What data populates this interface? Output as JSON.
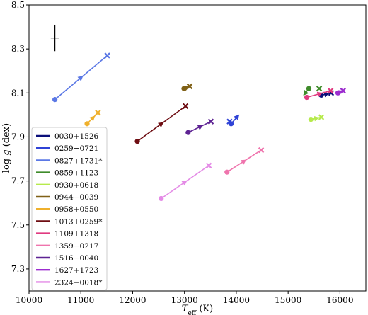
{
  "chart_data": {
    "type": "scatter",
    "xlabel": "T_eff (K)",
    "ylabel": "log g (dex)",
    "xlim": [
      10000,
      16500
    ],
    "ylim": [
      7.2,
      8.5
    ],
    "x_ticks": [
      10000,
      11000,
      12000,
      13000,
      14000,
      15000,
      16000
    ],
    "y_ticks": [
      7.3,
      7.5,
      7.7,
      7.9,
      8.1,
      8.3,
      8.5
    ],
    "x_tick_labels": [
      "10000",
      "11000",
      "12000",
      "13000",
      "14000",
      "15000",
      "16000"
    ],
    "y_tick_labels": [
      "7.3",
      "7.5",
      "7.7",
      "7.9",
      "8.1",
      "8.3",
      "8.5"
    ],
    "legend_position": "lower-left",
    "error_bar": {
      "x": 10500,
      "y": 8.35,
      "x_err": 80,
      "y_err": 0.06
    },
    "series": [
      {
        "name": "0030+1526",
        "color": "#0b0f7a",
        "circle": [
          15640,
          8.09
        ],
        "cross": [
          15830,
          8.1
        ]
      },
      {
        "name": "0259−0721",
        "color": "#2f43d6",
        "circle": [
          13900,
          7.96
        ],
        "cross": [
          13870,
          7.97
        ],
        "arrow_to": [
          14050,
          8.0
        ]
      },
      {
        "name": "0827+1731*",
        "color": "#5b78e5",
        "circle": [
          10500,
          8.07
        ],
        "cross": [
          11510,
          8.27
        ]
      },
      {
        "name": "0859+1123",
        "color": "#3e8b2a",
        "circle": [
          15400,
          8.12
        ],
        "cross": [
          15600,
          8.12
        ],
        "arrow_to": [
          15300,
          8.09
        ]
      },
      {
        "name": "0930+0618",
        "color": "#b6ea4c",
        "circle": [
          15440,
          7.98
        ],
        "cross": [
          15640,
          7.99
        ]
      },
      {
        "name": "0944−0039",
        "color": "#806117",
        "circle": [
          12990,
          8.12
        ],
        "cross": [
          13100,
          8.13
        ]
      },
      {
        "name": "0958+0550",
        "color": "#efb02c",
        "circle": [
          11120,
          7.96
        ],
        "cross": [
          11330,
          8.01
        ]
      },
      {
        "name": "1013+0259*",
        "color": "#6e0d12",
        "circle": [
          12090,
          7.88
        ],
        "cross": [
          13020,
          8.04
        ]
      },
      {
        "name": "1109+1318",
        "color": "#e03a80",
        "circle": [
          15360,
          8.08
        ],
        "cross": [
          15820,
          8.11
        ]
      },
      {
        "name": "1359−0217",
        "color": "#ef74ad",
        "circle": [
          13820,
          7.74
        ],
        "cross": [
          14480,
          7.84
        ]
      },
      {
        "name": "1516−0040",
        "color": "#5e2393",
        "circle": [
          13070,
          7.92
        ],
        "cross": [
          13510,
          7.97
        ]
      },
      {
        "name": "1627+1723",
        "color": "#9c2dcf",
        "circle": [
          15960,
          8.1
        ],
        "cross": [
          16060,
          8.11
        ]
      },
      {
        "name": "2324−0018*",
        "color": "#e48be6",
        "circle": [
          12550,
          7.62
        ],
        "cross": [
          13470,
          7.77
        ]
      }
    ]
  }
}
